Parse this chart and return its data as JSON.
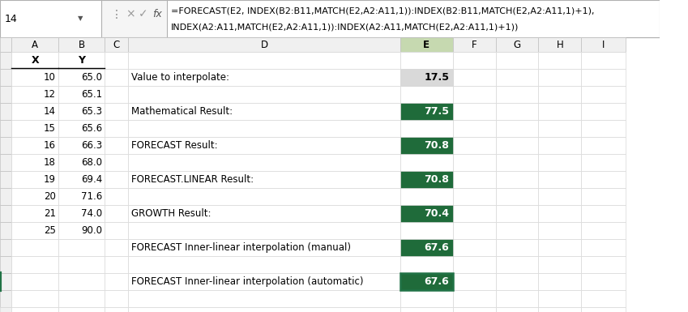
{
  "formula_bar_cell": "14",
  "formula_line1": "=FORECAST(E2, INDEX(B2:B11,MATCH(E2,A2:A11,1)):INDEX(B2:B11,MATCH(E2,A2:A11,1)+1),",
  "formula_line2": "INDEX(A2:A11,MATCH(E2,A2:A11,1)):INDEX(A2:A11,MATCH(E2,A2:A11,1)+1))",
  "col_headers": [
    "A",
    "B",
    "C",
    "D",
    "E",
    "F",
    "G",
    "H",
    "I"
  ],
  "labels": [
    "Value to interpolate:",
    "Mathematical Result:",
    "FORECAST Result:",
    "FORECAST.LINEAR Result:",
    "GROWTH Result:",
    "FORECAST Inner-linear interpolation (manual)",
    "FORECAST Inner-linear interpolation (automatic)"
  ],
  "values": [
    "17.5",
    "77.5",
    "70.8",
    "70.8",
    "70.4",
    "67.6",
    "67.6"
  ],
  "value_bg_colors": [
    "#d9d9d9",
    "#1f6b3a",
    "#1f6b3a",
    "#1f6b3a",
    "#1f6b3a",
    "#1f6b3a",
    "#1f6b3a"
  ],
  "value_text_colors": [
    "#000000",
    "#ffffff",
    "#ffffff",
    "#ffffff",
    "#ffffff",
    "#ffffff",
    "#ffffff"
  ],
  "active_col_header": "E",
  "active_col_header_bg": "#c6d9b0",
  "cell_border_active": "#217346",
  "sheet_bg": "#ffffff",
  "header_bg": "#f0f0f0",
  "grid_color": "#d0d0d0"
}
